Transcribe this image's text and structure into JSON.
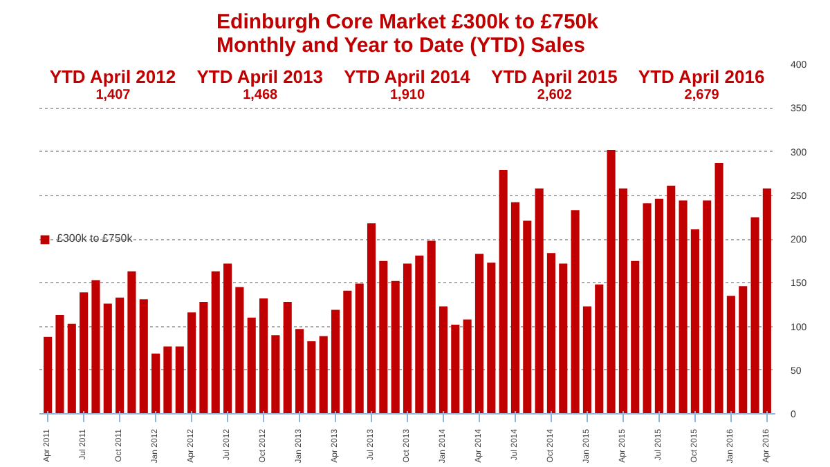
{
  "chart_data": {
    "type": "bar",
    "title": "Edinburgh Core Market £300k to £750k\nMonthly and Year to Date (YTD) Sales",
    "categories": [
      "Apr 2011",
      null,
      null,
      "Jul 2011",
      null,
      null,
      "Oct 2011",
      null,
      null,
      "Jan 2012",
      null,
      null,
      "Apr 2012",
      null,
      null,
      "Jul 2012",
      null,
      null,
      "Oct 2012",
      null,
      null,
      "Jan 2013",
      null,
      null,
      "Apr 2013",
      null,
      null,
      "Jul 2013",
      null,
      null,
      "Oct 2013",
      null,
      null,
      "Jan 2014",
      null,
      null,
      "Apr 2014",
      null,
      null,
      "Jul 2014",
      null,
      null,
      "Oct 2014",
      null,
      null,
      "Jan 2015",
      null,
      null,
      "Apr 2015",
      null,
      null,
      "Jul 2015",
      null,
      null,
      "Oct 2015",
      null,
      null,
      "Jan 2016",
      null,
      null,
      "Apr 2016"
    ],
    "series": [
      {
        "name": "£300k to £750k",
        "color": "#c00000",
        "values": [
          88,
          113,
          103,
          139,
          153,
          126,
          133,
          163,
          131,
          69,
          77,
          77,
          116,
          128,
          163,
          172,
          145,
          110,
          132,
          90,
          128,
          97,
          83,
          89,
          119,
          141,
          149,
          218,
          175,
          152,
          172,
          181,
          198,
          123,
          102,
          108,
          183,
          173,
          279,
          242,
          221,
          258,
          184,
          172,
          233,
          123,
          148,
          302,
          258,
          175,
          241,
          246,
          261,
          244,
          211,
          244,
          287,
          135,
          146,
          225,
          258
        ]
      }
    ],
    "ylim": [
      0,
      400
    ],
    "yticks": [
      0,
      50,
      100,
      150,
      200,
      250,
      300,
      350,
      400
    ],
    "grid": "y",
    "legend": "top left",
    "annotations": [
      "YTD April 2012",
      "1,407",
      "YTD April 2013",
      "1,468",
      "YTD April 2014",
      "1,910",
      "YTD April 2015",
      "2,602",
      "YTD April 2016",
      "2,679"
    ]
  }
}
